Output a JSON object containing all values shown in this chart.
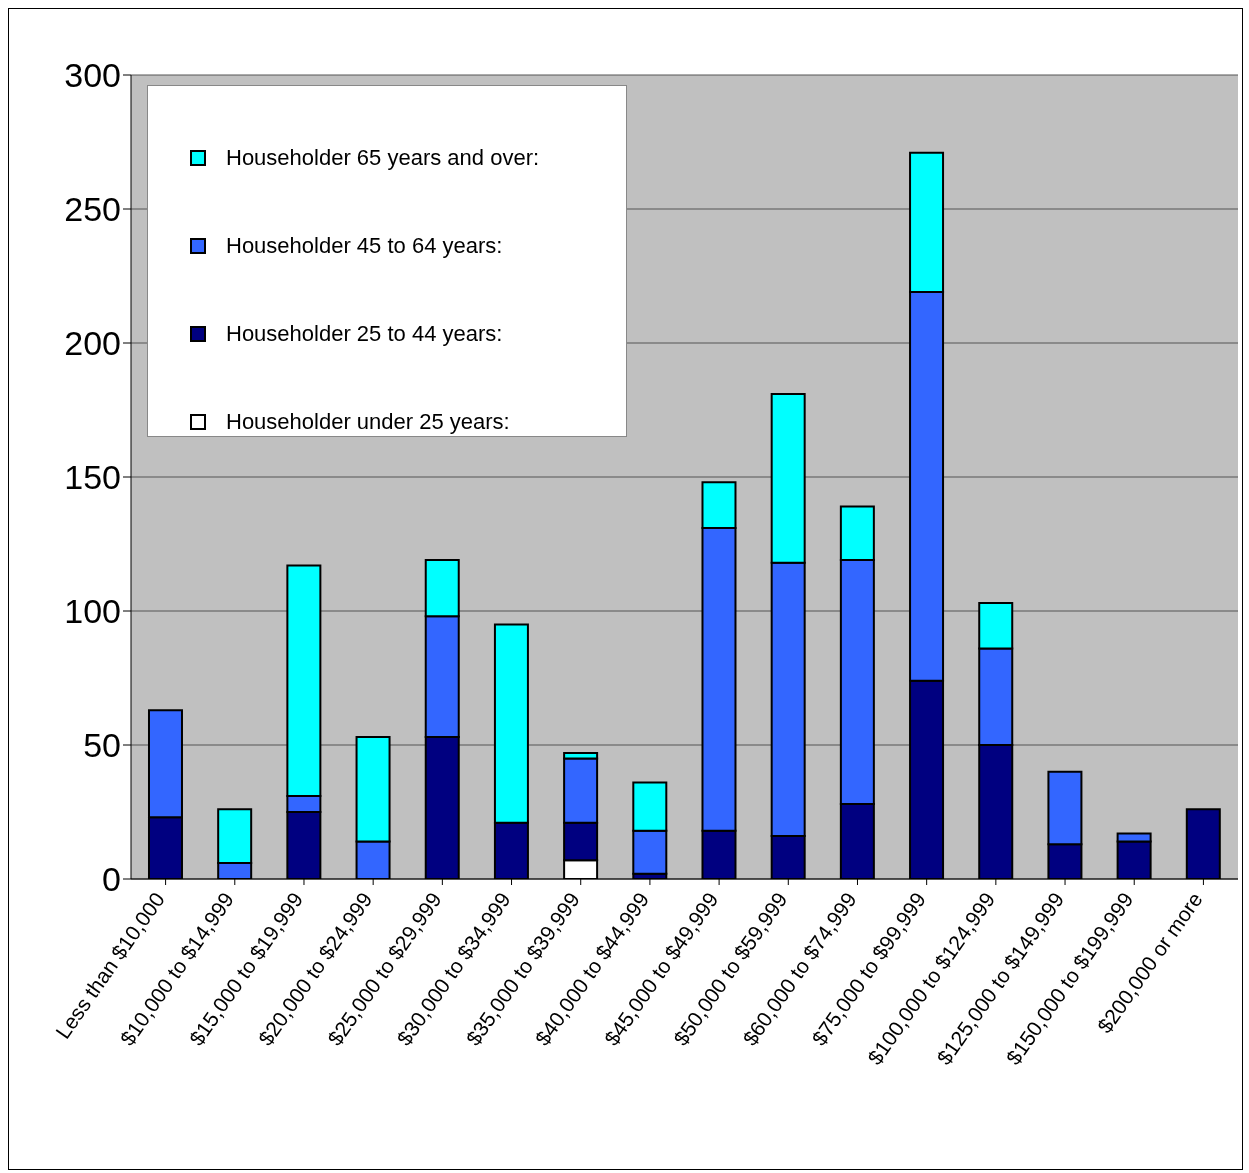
{
  "chart_data": {
    "type": "bar",
    "stacked": true,
    "categories": [
      "Less than $10,000",
      "$10,000 to $14,999",
      "$15,000 to $19,999",
      "$20,000 to $24,999",
      "$25,000 to $29,999",
      "$30,000 to $34,999",
      "$35,000 to $39,999",
      "$40,000 to $44,999",
      "$45,000 to $49,999",
      "$50,000 to $59,999",
      "$60,000 to $74,999",
      "$75,000 to $99,999",
      "$100,000 to $124,999",
      "$125,000 to $149,999",
      "$150,000 to $199,999",
      "$200,000 or more"
    ],
    "series": [
      {
        "name": "Householder under 25 years:",
        "color": "#ffffff",
        "values": [
          0,
          0,
          0,
          0,
          0,
          0,
          7,
          0,
          0,
          0,
          0,
          0,
          0,
          0,
          0,
          0
        ]
      },
      {
        "name": "Householder 25 to 44 years:",
        "color": "#000080",
        "values": [
          23,
          0,
          25,
          0,
          53,
          21,
          14,
          2,
          18,
          16,
          28,
          74,
          50,
          13,
          14,
          26
        ]
      },
      {
        "name": "Householder 45 to 64 years:",
        "color": "#3366ff",
        "values": [
          40,
          6,
          6,
          14,
          45,
          0,
          24,
          16,
          113,
          102,
          91,
          145,
          36,
          27,
          3,
          0
        ]
      },
      {
        "name": "Householder 65 years and over:",
        "color": "#00ffff",
        "values": [
          0,
          20,
          86,
          39,
          21,
          74,
          2,
          18,
          17,
          63,
          20,
          52,
          17,
          0,
          0,
          0
        ]
      }
    ],
    "ylim": [
      0,
      300
    ],
    "yticks": [
      0,
      50,
      100,
      150,
      200,
      250,
      300
    ],
    "grid": "y",
    "legend": "top left"
  }
}
